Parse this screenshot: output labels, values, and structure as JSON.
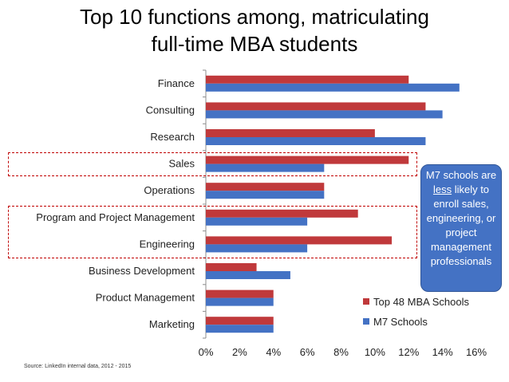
{
  "title_line1": "Top 10 functions among, matriculating",
  "title_line2": "full-time MBA students",
  "note": {
    "before": "M7 schools are ",
    "emphasis": "less",
    "after": " likely to enroll sales, engineering, or project management professionals"
  },
  "source": "Source: LinkedIn internal data, 2012 - 2015",
  "colors": {
    "top48": "#c0393b",
    "m7": "#4472c4"
  },
  "chart_data": {
    "type": "bar",
    "orientation": "horizontal",
    "categories": [
      "Finance",
      "Consulting",
      "Research",
      "Sales",
      "Operations",
      "Program and Project Management",
      "Engineering",
      "Business Development",
      "Product Management",
      "Marketing"
    ],
    "series": [
      {
        "name": "Top 48 MBA Schools",
        "values": [
          12,
          13,
          10,
          12,
          7,
          9,
          11,
          3,
          4,
          4
        ]
      },
      {
        "name": "M7 Schools",
        "values": [
          15,
          14,
          13,
          7,
          7,
          6,
          6,
          5,
          4,
          4
        ]
      }
    ],
    "xlim": [
      0,
      16
    ],
    "xticks": [
      "0%",
      "2%",
      "4%",
      "6%",
      "8%",
      "10%",
      "12%",
      "14%",
      "16%"
    ],
    "legend_position": "bottom-right"
  }
}
